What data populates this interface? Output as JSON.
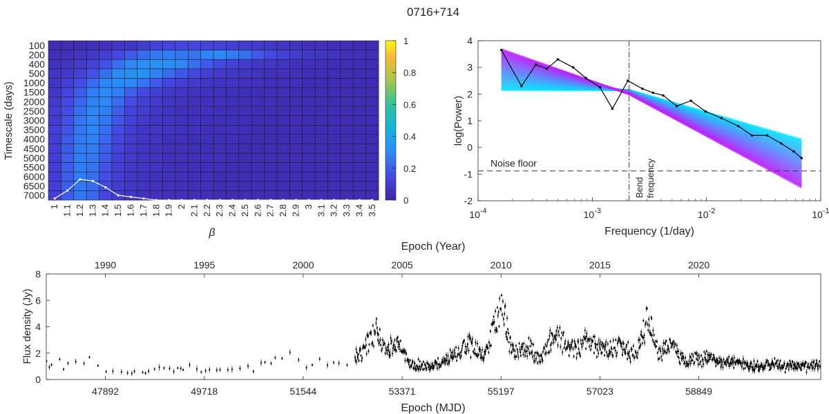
{
  "title": "0716+714",
  "chart_data": [
    {
      "type": "heatmap",
      "ylabel": "Timescale (days)",
      "xlabel": "β",
      "x_categories": [
        "1",
        "1.1",
        "1.2",
        "1.3",
        "1.4",
        "1.5",
        "1.6",
        "1.7",
        "1.8",
        "1.9",
        "2",
        "2.1",
        "2.2",
        "2.3",
        "2.4",
        "2.5",
        "2.6",
        "2.7",
        "2.8",
        "2.9",
        "3",
        "3.1",
        "3.2",
        "3.3",
        "3.4",
        "3.5"
      ],
      "y_categories": [
        "100",
        "200",
        "400",
        "500",
        "1000",
        "1500",
        "2000",
        "2500",
        "3000",
        "3500",
        "4000",
        "4500",
        "5000",
        "5500",
        "6000",
        "6500",
        "7000"
      ],
      "colorbar": {
        "ticks": [
          "0",
          "0.2",
          "0.4",
          "0.6",
          "0.8",
          "1"
        ],
        "range": [
          0,
          1
        ],
        "colormap": "parula"
      },
      "values": [
        [
          0.03,
          0.03,
          0.03,
          0.04,
          0.05,
          0.07,
          0.08,
          0.1,
          0.12,
          0.13,
          0.14,
          0.14,
          0.13,
          0.12,
          0.11,
          0.1,
          0.09,
          0.08,
          0.07,
          0.06,
          0.05,
          0.05,
          0.04,
          0.04,
          0.03,
          0.03
        ],
        [
          0.04,
          0.05,
          0.06,
          0.08,
          0.11,
          0.15,
          0.19,
          0.23,
          0.26,
          0.27,
          0.26,
          0.25,
          0.29,
          0.3,
          0.27,
          0.24,
          0.19,
          0.15,
          0.12,
          0.1,
          0.08,
          0.07,
          0.06,
          0.05,
          0.05,
          0.04
        ],
        [
          0.05,
          0.07,
          0.09,
          0.12,
          0.17,
          0.24,
          0.29,
          0.32,
          0.33,
          0.32,
          0.29,
          0.24,
          0.19,
          0.15,
          0.12,
          0.1,
          0.08,
          0.07,
          0.06,
          0.05,
          0.05,
          0.04,
          0.04,
          0.04,
          0.03,
          0.03
        ],
        [
          0.06,
          0.09,
          0.12,
          0.17,
          0.24,
          0.3,
          0.33,
          0.32,
          0.28,
          0.23,
          0.18,
          0.14,
          0.11,
          0.09,
          0.08,
          0.07,
          0.06,
          0.05,
          0.05,
          0.04,
          0.04,
          0.04,
          0.03,
          0.03,
          0.03,
          0.03
        ],
        [
          0.07,
          0.11,
          0.16,
          0.23,
          0.29,
          0.31,
          0.3,
          0.25,
          0.19,
          0.14,
          0.11,
          0.09,
          0.07,
          0.06,
          0.06,
          0.05,
          0.05,
          0.04,
          0.04,
          0.04,
          0.03,
          0.03,
          0.03,
          0.03,
          0.03,
          0.03
        ],
        [
          0.08,
          0.13,
          0.2,
          0.27,
          0.3,
          0.27,
          0.21,
          0.15,
          0.11,
          0.09,
          0.07,
          0.06,
          0.05,
          0.05,
          0.05,
          0.04,
          0.04,
          0.04,
          0.04,
          0.03,
          0.03,
          0.03,
          0.03,
          0.03,
          0.03,
          0.03
        ],
        [
          0.09,
          0.15,
          0.22,
          0.28,
          0.29,
          0.23,
          0.16,
          0.11,
          0.09,
          0.07,
          0.06,
          0.05,
          0.05,
          0.05,
          0.04,
          0.04,
          0.04,
          0.04,
          0.03,
          0.03,
          0.03,
          0.03,
          0.03,
          0.03,
          0.03,
          0.03
        ],
        [
          0.1,
          0.16,
          0.24,
          0.29,
          0.28,
          0.2,
          0.13,
          0.1,
          0.08,
          0.06,
          0.05,
          0.05,
          0.05,
          0.04,
          0.04,
          0.04,
          0.04,
          0.03,
          0.03,
          0.03,
          0.03,
          0.03,
          0.03,
          0.03,
          0.03,
          0.03
        ],
        [
          0.1,
          0.17,
          0.25,
          0.29,
          0.26,
          0.18,
          0.12,
          0.09,
          0.07,
          0.06,
          0.05,
          0.05,
          0.04,
          0.04,
          0.04,
          0.04,
          0.03,
          0.03,
          0.03,
          0.03,
          0.03,
          0.03,
          0.03,
          0.03,
          0.03,
          0.03
        ],
        [
          0.11,
          0.18,
          0.26,
          0.29,
          0.24,
          0.16,
          0.11,
          0.08,
          0.07,
          0.06,
          0.05,
          0.05,
          0.04,
          0.04,
          0.04,
          0.04,
          0.03,
          0.03,
          0.03,
          0.03,
          0.03,
          0.03,
          0.03,
          0.03,
          0.03,
          0.03
        ],
        [
          0.11,
          0.19,
          0.26,
          0.28,
          0.22,
          0.14,
          0.1,
          0.08,
          0.06,
          0.05,
          0.05,
          0.04,
          0.04,
          0.04,
          0.04,
          0.03,
          0.03,
          0.03,
          0.03,
          0.03,
          0.03,
          0.03,
          0.03,
          0.03,
          0.03,
          0.03
        ],
        [
          0.11,
          0.19,
          0.27,
          0.27,
          0.2,
          0.13,
          0.09,
          0.07,
          0.06,
          0.05,
          0.05,
          0.04,
          0.04,
          0.04,
          0.04,
          0.03,
          0.03,
          0.03,
          0.03,
          0.03,
          0.03,
          0.03,
          0.03,
          0.03,
          0.03,
          0.03
        ],
        [
          0.11,
          0.2,
          0.27,
          0.26,
          0.19,
          0.12,
          0.09,
          0.07,
          0.06,
          0.05,
          0.05,
          0.04,
          0.04,
          0.04,
          0.03,
          0.03,
          0.03,
          0.03,
          0.03,
          0.03,
          0.03,
          0.03,
          0.03,
          0.03,
          0.03,
          0.03
        ],
        [
          0.11,
          0.2,
          0.27,
          0.25,
          0.17,
          0.11,
          0.08,
          0.07,
          0.06,
          0.05,
          0.04,
          0.04,
          0.04,
          0.04,
          0.03,
          0.03,
          0.03,
          0.03,
          0.03,
          0.03,
          0.03,
          0.03,
          0.03,
          0.03,
          0.03,
          0.03
        ],
        [
          0.11,
          0.2,
          0.27,
          0.24,
          0.16,
          0.11,
          0.08,
          0.06,
          0.05,
          0.05,
          0.04,
          0.04,
          0.04,
          0.03,
          0.03,
          0.03,
          0.03,
          0.03,
          0.03,
          0.03,
          0.03,
          0.03,
          0.03,
          0.03,
          0.03,
          0.03
        ],
        [
          0.11,
          0.2,
          0.26,
          0.23,
          0.15,
          0.1,
          0.08,
          0.06,
          0.05,
          0.05,
          0.04,
          0.04,
          0.04,
          0.03,
          0.03,
          0.03,
          0.03,
          0.03,
          0.03,
          0.03,
          0.03,
          0.03,
          0.03,
          0.03,
          0.03,
          0.03
        ],
        [
          0.11,
          0.2,
          0.26,
          0.22,
          0.14,
          0.1,
          0.07,
          0.06,
          0.05,
          0.05,
          0.04,
          0.04,
          0.04,
          0.03,
          0.03,
          0.03,
          0.03,
          0.03,
          0.03,
          0.03,
          0.03,
          0.03,
          0.03,
          0.03,
          0.03,
          0.03
        ]
      ],
      "overlay_curve": {
        "color": "#ffffff",
        "values": [
          0.01,
          0.06,
          0.13,
          0.12,
          0.08,
          0.03,
          0.02,
          0.01,
          0.0,
          0.0,
          0.0,
          0.0,
          0.0,
          0.0,
          0.0,
          0.0,
          0.0,
          0.0,
          0.0,
          0.0,
          0.0,
          0.0,
          0.0,
          0.0,
          0.0,
          0.0
        ]
      }
    },
    {
      "type": "line",
      "xlabel": "Frequency (1/day)",
      "ylabel": "log(Power)",
      "xscale": "log",
      "xlim": [
        0.0001,
        0.1
      ],
      "ylim": [
        -2,
        4
      ],
      "x_ticks": [
        {
          "base": "10",
          "exp": "-4"
        },
        {
          "base": "10",
          "exp": "-3"
        },
        {
          "base": "10",
          "exp": "-2"
        },
        {
          "base": "10",
          "exp": "-1"
        }
      ],
      "y_ticks": [
        "-2",
        "-1",
        "0",
        "1",
        "2",
        "3",
        "4"
      ],
      "annotations": {
        "noise_floor": "Noise floor",
        "bend": [
          "Bend",
          "frequency"
        ]
      },
      "noise_floor_y": -0.88,
      "bend_frequency_x": 0.0021,
      "simulated_band": {
        "colors": [
          "#00e5ff",
          "#c020ff"
        ],
        "x": [
          0.00016,
          0.0021,
          0.068
        ],
        "upper_high_bend": [
          3.85,
          2.1,
          0.3
        ],
        "upper_low_bend": [
          2.15,
          2.15,
          0.3
        ],
        "lower": [
          2.1,
          2.0,
          -1.5
        ]
      },
      "series": [
        {
          "color": "#000000",
          "x": [
            0.00016,
            0.00024,
            0.00032,
            0.0004,
            0.0005,
            0.00068,
            0.00088,
            0.00117,
            0.0015,
            0.00205,
            0.00275,
            0.0034,
            0.00418,
            0.0055,
            0.0073,
            0.0098,
            0.0135,
            0.019,
            0.025,
            0.034,
            0.045,
            0.058,
            0.068
          ],
          "y": [
            3.65,
            2.3,
            3.1,
            2.95,
            3.3,
            3.0,
            2.6,
            2.25,
            1.45,
            2.5,
            2.2,
            2.05,
            1.95,
            1.55,
            1.75,
            1.35,
            1.1,
            0.8,
            0.45,
            0.45,
            0.15,
            -0.15,
            -0.4
          ]
        }
      ]
    },
    {
      "type": "scatter",
      "xlabel": "Epoch (MJD)",
      "ylabel": "Flux density (Jy)",
      "top_xlabel": "Epoch (Year)",
      "xlim": [
        46800,
        61100
      ],
      "ylim": [
        0,
        8
      ],
      "x_ticks": [
        "47892",
        "49718",
        "51544",
        "53371",
        "55197",
        "57023",
        "58849"
      ],
      "top_ticks": [
        "1990",
        "1995",
        "2000",
        "2005",
        "2010",
        "2015",
        "2020"
      ],
      "y_ticks": [
        "0",
        "2",
        "4",
        "6",
        "8"
      ],
      "flux_profile": [
        {
          "mjd": 46800,
          "base": 1.0
        },
        {
          "mjd": 47200,
          "base": 1.2
        },
        {
          "mjd": 47600,
          "base": 1.2
        },
        {
          "mjd": 47900,
          "base": 0.7
        },
        {
          "mjd": 48400,
          "base": 0.6
        },
        {
          "mjd": 49000,
          "base": 0.7
        },
        {
          "mjd": 49300,
          "base": 0.8
        },
        {
          "mjd": 49700,
          "base": 0.8
        },
        {
          "mjd": 50100,
          "base": 0.6
        },
        {
          "mjd": 50600,
          "base": 1.0
        },
        {
          "mjd": 51000,
          "base": 1.8
        },
        {
          "mjd": 51300,
          "base": 1.9
        },
        {
          "mjd": 51600,
          "base": 1.0
        },
        {
          "mjd": 52000,
          "base": 1.3
        },
        {
          "mjd": 52300,
          "base": 1.1
        },
        {
          "mjd": 52600,
          "base": 2.0
        },
        {
          "mjd": 52900,
          "base": 3.8
        },
        {
          "mjd": 53050,
          "base": 2.3
        },
        {
          "mjd": 53300,
          "base": 2.6
        },
        {
          "mjd": 53500,
          "base": 1.2
        },
        {
          "mjd": 53900,
          "base": 1.0
        },
        {
          "mjd": 54200,
          "base": 1.6
        },
        {
          "mjd": 54600,
          "base": 2.6
        },
        {
          "mjd": 54900,
          "base": 1.8
        },
        {
          "mjd": 55200,
          "base": 5.8
        },
        {
          "mjd": 55400,
          "base": 2.2
        },
        {
          "mjd": 55700,
          "base": 2.4
        },
        {
          "mjd": 55900,
          "base": 1.6
        },
        {
          "mjd": 56200,
          "base": 3.6
        },
        {
          "mjd": 56500,
          "base": 2.2
        },
        {
          "mjd": 56800,
          "base": 3.0
        },
        {
          "mjd": 57100,
          "base": 2.2
        },
        {
          "mjd": 57400,
          "base": 2.5
        },
        {
          "mjd": 57700,
          "base": 1.8
        },
        {
          "mjd": 57900,
          "base": 4.6
        },
        {
          "mjd": 58100,
          "base": 2.0
        },
        {
          "mjd": 58300,
          "base": 2.6
        },
        {
          "mjd": 58600,
          "base": 1.4
        },
        {
          "mjd": 59000,
          "base": 1.6
        },
        {
          "mjd": 59400,
          "base": 1.3
        },
        {
          "mjd": 59800,
          "base": 1.0
        },
        {
          "mjd": 60200,
          "base": 1.1
        },
        {
          "mjd": 60600,
          "base": 1.0
        },
        {
          "mjd": 61100,
          "base": 1.0
        }
      ]
    }
  ]
}
